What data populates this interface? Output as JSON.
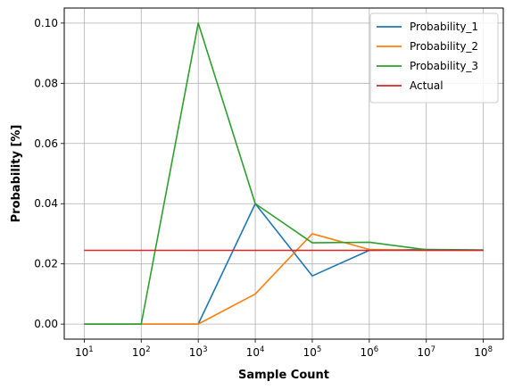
{
  "chart_data": {
    "type": "line",
    "xscale": "log",
    "x": [
      10,
      100,
      1000,
      10000,
      100000,
      1000000,
      10000000,
      100000000
    ],
    "x_tick_labels": [
      {
        "base": "10",
        "exp": "1"
      },
      {
        "base": "10",
        "exp": "2"
      },
      {
        "base": "10",
        "exp": "3"
      },
      {
        "base": "10",
        "exp": "4"
      },
      {
        "base": "10",
        "exp": "5"
      },
      {
        "base": "10",
        "exp": "6"
      },
      {
        "base": "10",
        "exp": "7"
      },
      {
        "base": "10",
        "exp": "8"
      }
    ],
    "y_tick_labels": [
      "0.00",
      "0.02",
      "0.04",
      "0.06",
      "0.08",
      "0.10"
    ],
    "y_ticks": [
      0,
      0.02,
      0.04,
      0.06,
      0.08,
      0.1
    ],
    "xlabel": "Sample Count",
    "ylabel": "Probability [%]",
    "ylim": [
      -0.005,
      0.105
    ],
    "grid": true,
    "legend_position": "top-right",
    "series": [
      {
        "name": "Probability_1",
        "color": "#1f77b4",
        "values": [
          0,
          0,
          0,
          0.04,
          0.016,
          0.0245,
          0.0248,
          0.0246
        ]
      },
      {
        "name": "Probability_2",
        "color": "#ff7f0e",
        "values": [
          0,
          0,
          0,
          0.01,
          0.03,
          0.0248,
          0.0245,
          0.0245
        ]
      },
      {
        "name": "Probability_3",
        "color": "#2ca02c",
        "values": [
          0,
          0,
          0.1,
          0.04,
          0.027,
          0.0272,
          0.0247,
          0.0246
        ]
      },
      {
        "name": "Actual",
        "color": "#d62728",
        "values": [
          0.0245,
          0.0245,
          0.0245,
          0.0245,
          0.0245,
          0.0245,
          0.0245,
          0.0245
        ]
      }
    ]
  }
}
